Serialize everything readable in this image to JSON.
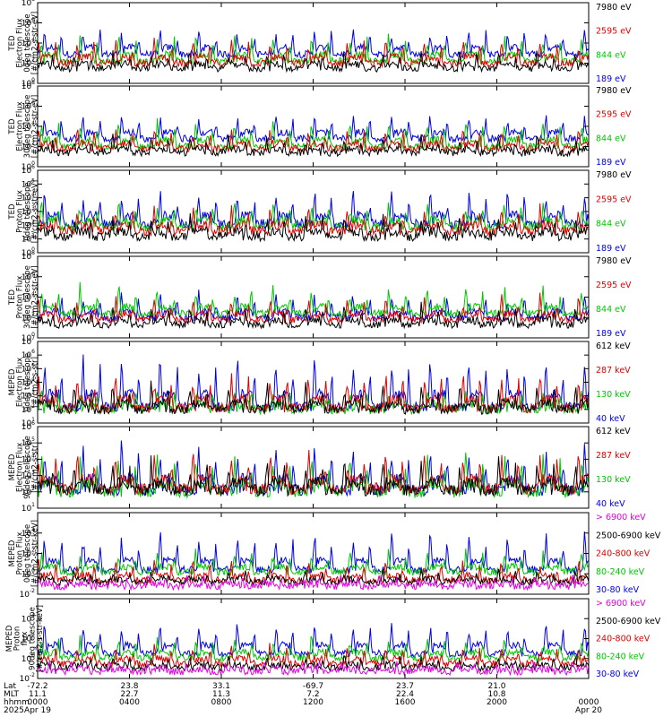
{
  "chart_data": [
    {
      "type": "line",
      "ylabel": [
        "TED",
        "Electron Flux",
        "0deg telescope",
        "[#/cm2-s-str-eV]"
      ],
      "yticks": [
        {
          "label": "10",
          "exp": "0"
        },
        {
          "label": "10",
          "exp": "2"
        },
        {
          "label": "10",
          "exp": "4"
        },
        {
          "label": "10",
          "exp": "6"
        },
        {
          "label": "10",
          "exp": "8"
        }
      ],
      "ylim_log10": [
        0,
        8
      ],
      "series": [
        {
          "name": "7980 eV",
          "color": "#000000",
          "base": 1.5,
          "amp": 1.6
        },
        {
          "name": "2595 eV",
          "color": "#e00000",
          "base": 2.0,
          "amp": 2.4
        },
        {
          "name": "844 eV",
          "color": "#00c800",
          "base": 2.2,
          "amp": 2.6
        },
        {
          "name": "189 eV",
          "color": "#0000e6",
          "base": 2.9,
          "amp": 2.6
        }
      ]
    },
    {
      "type": "line",
      "ylabel": [
        "TED",
        "Electron Flux",
        "30deg telescope",
        "[#/cm2-s-str-eV]"
      ],
      "yticks": [
        {
          "label": "10",
          "exp": "0"
        },
        {
          "label": "10",
          "exp": "2"
        },
        {
          "label": "10",
          "exp": "4"
        },
        {
          "label": "10",
          "exp": "6"
        },
        {
          "label": "10",
          "exp": "8"
        }
      ],
      "ylim_log10": [
        0,
        8
      ],
      "series": [
        {
          "name": "7980 eV",
          "color": "#000000",
          "base": 1.4,
          "amp": 1.4
        },
        {
          "name": "2595 eV",
          "color": "#e00000",
          "base": 1.8,
          "amp": 2.0
        },
        {
          "name": "844 eV",
          "color": "#00c800",
          "base": 2.0,
          "amp": 2.6
        },
        {
          "name": "189 eV",
          "color": "#0000e6",
          "base": 2.8,
          "amp": 2.4
        }
      ]
    },
    {
      "type": "line",
      "ylabel": [
        "TED",
        "Proton Flux",
        "0deg telescope",
        "[#/cm2-s-str-eV]"
      ],
      "yticks": [
        {
          "label": "10",
          "exp": "0"
        },
        {
          "label": "10",
          "exp": "1"
        },
        {
          "label": "10",
          "exp": "2"
        },
        {
          "label": "10",
          "exp": "3"
        },
        {
          "label": "10",
          "exp": "4"
        },
        {
          "label": "10",
          "exp": "5"
        },
        {
          "label": "10",
          "exp": "6"
        }
      ],
      "ylim_log10": [
        0,
        6
      ],
      "series": [
        {
          "name": "7980 eV",
          "color": "#000000",
          "base": 1.2,
          "amp": 1.4
        },
        {
          "name": "2595 eV",
          "color": "#e00000",
          "base": 1.6,
          "amp": 1.6
        },
        {
          "name": "844 eV",
          "color": "#00c800",
          "base": 1.9,
          "amp": 1.8
        },
        {
          "name": "189 eV",
          "color": "#0000e6",
          "base": 2.1,
          "amp": 2.4
        }
      ]
    },
    {
      "type": "line",
      "ylabel": [
        "TED",
        "Proton Flux",
        "30deg telescope",
        "[#/cm2-s-str-eV]"
      ],
      "yticks": [
        {
          "label": "10",
          "exp": "0"
        },
        {
          "label": "10",
          "exp": "2"
        },
        {
          "label": "10",
          "exp": "4"
        },
        {
          "label": "10",
          "exp": "6"
        },
        {
          "label": "10",
          "exp": "8"
        }
      ],
      "ylim_log10": [
        0,
        8
      ],
      "series": [
        {
          "name": "7980 eV",
          "color": "#000000",
          "base": 1.3,
          "amp": 1.8
        },
        {
          "name": "2595 eV",
          "color": "#e00000",
          "base": 1.8,
          "amp": 2.2
        },
        {
          "name": "844 eV",
          "color": "#00c800",
          "base": 2.4,
          "amp": 2.6
        },
        {
          "name": "189 eV",
          "color": "#0000e6",
          "base": 2.0,
          "amp": 2.4
        }
      ]
    },
    {
      "type": "line",
      "ylabel": [
        "MEPED",
        "Electron Flux",
        "0deg telescope",
        "[#/cm2-s-str]"
      ],
      "yticks": [
        {
          "label": "10",
          "exp": "1"
        },
        {
          "label": "10",
          "exp": "2"
        },
        {
          "label": "10",
          "exp": "3"
        },
        {
          "label": "10",
          "exp": "4"
        },
        {
          "label": "10",
          "exp": "5"
        },
        {
          "label": "10",
          "exp": "6"
        },
        {
          "label": "10",
          "exp": "7"
        }
      ],
      "ylim_log10": [
        1,
        7
      ],
      "series": [
        {
          "name": "612 keV",
          "color": "#000000",
          "base": 2.0,
          "amp": 1.8
        },
        {
          "name": "287 keV",
          "color": "#e00000",
          "base": 2.1,
          "amp": 2.6
        },
        {
          "name": "130 keV",
          "color": "#00c800",
          "base": 2.0,
          "amp": 1.4
        },
        {
          "name": "40 keV",
          "color": "#0000e6",
          "base": 2.2,
          "amp": 3.8
        }
      ]
    },
    {
      "type": "line",
      "ylabel": [
        "MEPED",
        "Electron Flux",
        "90deg telescope",
        "[#/cm2-s-str]"
      ],
      "yticks": [
        {
          "label": "10",
          "exp": "1"
        },
        {
          "label": "10",
          "exp": "2"
        },
        {
          "label": "10",
          "exp": "3"
        },
        {
          "label": "10",
          "exp": "4"
        },
        {
          "label": "10",
          "exp": "5"
        },
        {
          "label": "10",
          "exp": "6"
        }
      ],
      "ylim_log10": [
        1,
        6
      ],
      "series": [
        {
          "name": "612 keV",
          "color": "#000000",
          "base": 2.1,
          "amp": 1.8
        },
        {
          "name": "287 keV",
          "color": "#e00000",
          "base": 2.2,
          "amp": 2.2
        },
        {
          "name": "130 keV",
          "color": "#00c800",
          "base": 2.0,
          "amp": 2.2
        },
        {
          "name": "40 keV",
          "color": "#0000e6",
          "base": 2.1,
          "amp": 2.8
        }
      ]
    },
    {
      "type": "line",
      "ylabel": [
        "MEPED",
        "Proton Flux",
        "0deg telescope",
        "[#/cm2-s-str-keV]"
      ],
      "yticks": [
        {
          "label": "10",
          "exp": "-2"
        },
        {
          "label": "10",
          "exp": "0"
        },
        {
          "label": "10",
          "exp": "2"
        },
        {
          "label": "10",
          "exp": "4"
        }
      ],
      "ylim_log10": [
        -2,
        6
      ],
      "series": [
        {
          "name": "> 6900 keV",
          "color": "#e600e6",
          "base": -1.2,
          "amp": 0.9
        },
        {
          "name": "2500-6900 keV",
          "color": "#000000",
          "base": -0.8,
          "amp": 1.0
        },
        {
          "name": "240-800 keV",
          "color": "#e00000",
          "base": -0.6,
          "amp": 1.8
        },
        {
          "name": "80-240 keV",
          "color": "#00c800",
          "base": 0.2,
          "amp": 2.0
        },
        {
          "name": "30-80 keV",
          "color": "#0000e6",
          "base": 0.4,
          "amp": 3.6
        }
      ]
    },
    {
      "type": "line",
      "ylabel": [
        "MEPED",
        "Proton",
        "flux",
        "90deg telescope",
        "[#/cm2-s-str-keV]"
      ],
      "yticks": [
        {
          "label": "10",
          "exp": "-2"
        },
        {
          "label": "10",
          "exp": "0"
        },
        {
          "label": "10",
          "exp": "2"
        },
        {
          "label": "10",
          "exp": "4"
        }
      ],
      "ylim_log10": [
        -2,
        6
      ],
      "series": [
        {
          "name": "> 6900 keV",
          "color": "#e600e6",
          "base": -1.3,
          "amp": 0.9
        },
        {
          "name": "2500-6900 keV",
          "color": "#000000",
          "base": -0.9,
          "amp": 1.0
        },
        {
          "name": "240-800 keV",
          "color": "#e00000",
          "base": -0.5,
          "amp": 1.8
        },
        {
          "name": "80-240 keV",
          "color": "#00c800",
          "base": 0.1,
          "amp": 2.0
        },
        {
          "name": "30-80 keV",
          "color": "#0000e6",
          "base": 0.5,
          "amp": 3.4
        }
      ]
    }
  ],
  "x_axis": {
    "labels": [
      "Lat",
      "MLT",
      "hhmm",
      "2025"
    ],
    "ticks": [
      {
        "hour": 0,
        "lat": "-72.2",
        "mlt": "11.1",
        "hhmm": "0000",
        "date": "Apr 19"
      },
      {
        "hour": 4,
        "lat": "23.8",
        "mlt": "22.7",
        "hhmm": "0400",
        "date": ""
      },
      {
        "hour": 8,
        "lat": "33.1",
        "mlt": "11.3",
        "hhmm": "0800",
        "date": ""
      },
      {
        "hour": 12,
        "lat": "-69.7",
        "mlt": "7.2",
        "hhmm": "1200",
        "date": ""
      },
      {
        "hour": 16,
        "lat": "23.7",
        "mlt": "22.4",
        "hhmm": "1600",
        "date": ""
      },
      {
        "hour": 20,
        "lat": "21.0",
        "mlt": "10.8",
        "hhmm": "2000",
        "date": ""
      },
      {
        "hour": 24,
        "lat": "",
        "mlt": "",
        "hhmm": "0000",
        "date": "Apr 20"
      }
    ],
    "xlim_hours": [
      0,
      24
    ]
  }
}
